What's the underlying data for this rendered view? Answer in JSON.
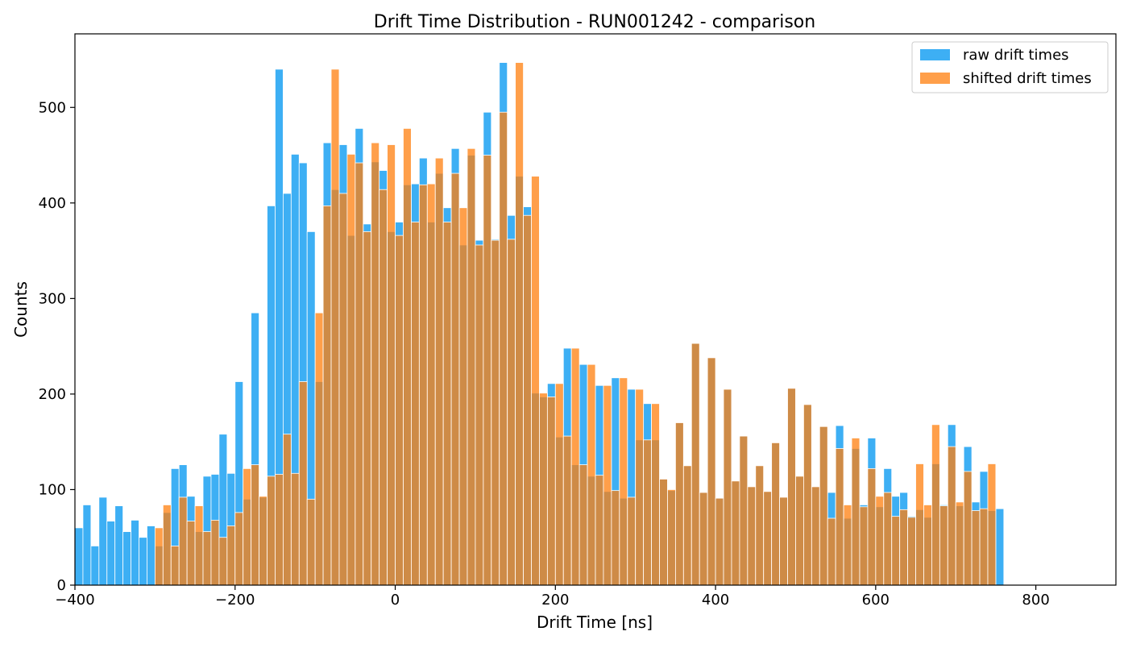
{
  "chart_data": {
    "type": "bar",
    "title": "Drift Time Distribution - RUN001242 - comparison",
    "xlabel": "Drift Time [ns]",
    "ylabel": "Counts",
    "xlim": [
      -400,
      900
    ],
    "ylim": [
      0,
      577
    ],
    "bin_width": 10,
    "bins_start": -400,
    "x_ticks": [
      -400,
      -200,
      0,
      200,
      400,
      600,
      800
    ],
    "x_tick_labels": [
      "−400",
      "−200",
      "0",
      "200",
      "400",
      "600",
      "800"
    ],
    "y_ticks": [
      0,
      100,
      200,
      300,
      400,
      500
    ],
    "y_tick_labels": [
      "0",
      "100",
      "200",
      "300",
      "400",
      "500"
    ],
    "grid": false,
    "legend_position": "top-right",
    "series": [
      {
        "name": "raw drift times",
        "color": "#1ba1f2",
        "opacity": 0.85,
        "values": [
          60,
          84,
          41,
          92,
          67,
          83,
          56,
          68,
          50,
          62,
          41,
          76,
          122,
          126,
          93,
          56,
          114,
          116,
          158,
          117,
          213,
          90,
          285,
          92,
          397,
          540,
          410,
          451,
          442,
          370,
          213,
          463,
          414,
          461,
          366,
          478,
          378,
          443,
          434,
          370,
          380,
          419,
          420,
          447,
          380,
          431,
          395,
          457,
          356,
          450,
          361,
          495,
          362,
          547,
          387,
          428,
          396,
          201,
          197,
          211,
          155,
          248,
          126,
          231,
          114,
          209,
          98,
          217,
          91,
          205,
          152,
          190,
          152,
          111,
          99,
          170,
          125,
          253,
          97,
          238,
          91,
          205,
          109,
          156,
          103,
          125,
          98,
          149,
          92,
          206,
          114,
          189,
          103,
          166,
          97,
          167,
          70,
          143,
          84,
          154,
          82,
          122,
          93,
          97,
          72,
          79,
          71,
          127,
          84,
          168,
          83,
          145,
          87,
          119,
          78,
          80
        ]
      },
      {
        "name": "shifted drift times",
        "color": "#ff7f0e",
        "opacity": 0.75,
        "values": [
          null,
          null,
          null,
          null,
          null,
          null,
          null,
          null,
          null,
          null,
          60,
          84,
          41,
          92,
          67,
          83,
          56,
          68,
          50,
          62,
          76,
          122,
          126,
          93,
          114,
          116,
          158,
          117,
          213,
          90,
          285,
          397,
          540,
          410,
          451,
          442,
          370,
          463,
          414,
          461,
          366,
          478,
          380,
          419,
          420,
          447,
          380,
          431,
          395,
          457,
          356,
          450,
          361,
          495,
          362,
          547,
          387,
          428,
          201,
          197,
          211,
          156,
          248,
          126,
          231,
          115,
          209,
          99,
          217,
          92,
          205,
          152,
          190,
          111,
          100,
          170,
          125,
          253,
          97,
          238,
          91,
          205,
          109,
          156,
          103,
          125,
          98,
          149,
          92,
          206,
          114,
          189,
          103,
          166,
          70,
          143,
          84,
          154,
          82,
          122,
          93,
          97,
          72,
          79,
          71,
          127,
          84,
          168,
          83,
          145,
          87,
          119,
          78,
          80,
          127
        ]
      }
    ]
  }
}
